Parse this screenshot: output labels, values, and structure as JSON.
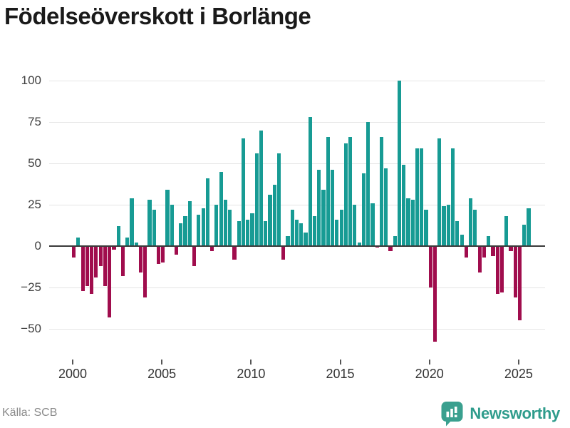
{
  "title": "Födelseöverskott i Borlänge",
  "source": "Källa: SCB",
  "brand": {
    "name": "Newsworthy"
  },
  "colors": {
    "positive": "#179b94",
    "negative": "#a00d4d",
    "zero_axis": "#3a3a3a",
    "grid": "#e5e5e5",
    "brand": "#2f9c8c",
    "title_text": "#1a1a1a",
    "tick_text": "#333333",
    "source_text": "#8a8a8a"
  },
  "chart_data": {
    "type": "bar",
    "title": "Födelseöverskott i Borlänge",
    "frequency": "quarterly",
    "start": "2000-Q1",
    "end": "2025-Q3",
    "xlabel": "",
    "ylabel": "",
    "ylim": [
      -62,
      104
    ],
    "grid": "horizontal",
    "y_ticks": [
      {
        "value": 100,
        "label": "100"
      },
      {
        "value": 75,
        "label": "75"
      },
      {
        "value": 50,
        "label": "50"
      },
      {
        "value": 25,
        "label": "25"
      },
      {
        "value": 0,
        "label": "0"
      },
      {
        "value": -25,
        "label": "−25"
      },
      {
        "value": -50,
        "label": "−50"
      }
    ],
    "x_ticks": [
      2000,
      2005,
      2010,
      2015,
      2020,
      2025
    ],
    "years": [
      {
        "year": 2000,
        "values": [
          -7,
          5,
          -27,
          -24
        ]
      },
      {
        "year": 2001,
        "values": [
          -29,
          -19,
          -12,
          -24
        ]
      },
      {
        "year": 2002,
        "values": [
          -43,
          -2,
          12,
          -18
        ]
      },
      {
        "year": 2003,
        "values": [
          5,
          29,
          2,
          -16
        ]
      },
      {
        "year": 2004,
        "values": [
          -31,
          28,
          22,
          -11
        ]
      },
      {
        "year": 2005,
        "values": [
          -10,
          34,
          25,
          -5
        ]
      },
      {
        "year": 2006,
        "values": [
          14,
          18,
          27,
          -12
        ]
      },
      {
        "year": 2007,
        "values": [
          19,
          23,
          41,
          -3
        ]
      },
      {
        "year": 2008,
        "values": [
          25,
          45,
          28,
          22
        ]
      },
      {
        "year": 2009,
        "values": [
          -8,
          15,
          65,
          16
        ]
      },
      {
        "year": 2010,
        "values": [
          20,
          56,
          70,
          15
        ]
      },
      {
        "year": 2011,
        "values": [
          31,
          37,
          56,
          -8
        ]
      },
      {
        "year": 2012,
        "values": [
          6,
          22,
          16,
          14
        ]
      },
      {
        "year": 2013,
        "values": [
          8,
          78,
          18,
          46
        ]
      },
      {
        "year": 2014,
        "values": [
          34,
          66,
          46,
          16
        ]
      },
      {
        "year": 2015,
        "values": [
          22,
          62,
          66,
          25
        ]
      },
      {
        "year": 2016,
        "values": [
          2,
          44,
          75,
          26
        ]
      },
      {
        "year": 2017,
        "values": [
          -1,
          66,
          47,
          -3
        ]
      },
      {
        "year": 2018,
        "values": [
          6,
          100,
          49,
          29
        ]
      },
      {
        "year": 2019,
        "values": [
          28,
          59,
          59,
          22
        ]
      },
      {
        "year": 2020,
        "values": [
          -25,
          -58,
          65,
          24
        ]
      },
      {
        "year": 2021,
        "values": [
          25,
          59,
          15,
          7
        ]
      },
      {
        "year": 2022,
        "values": [
          -7,
          29,
          22,
          -16
        ]
      },
      {
        "year": 2023,
        "values": [
          -7,
          6,
          -6,
          -29
        ]
      },
      {
        "year": 2024,
        "values": [
          -28,
          18,
          -3,
          -31
        ]
      },
      {
        "year": 2025,
        "values": [
          -45,
          13,
          23
        ]
      }
    ]
  }
}
